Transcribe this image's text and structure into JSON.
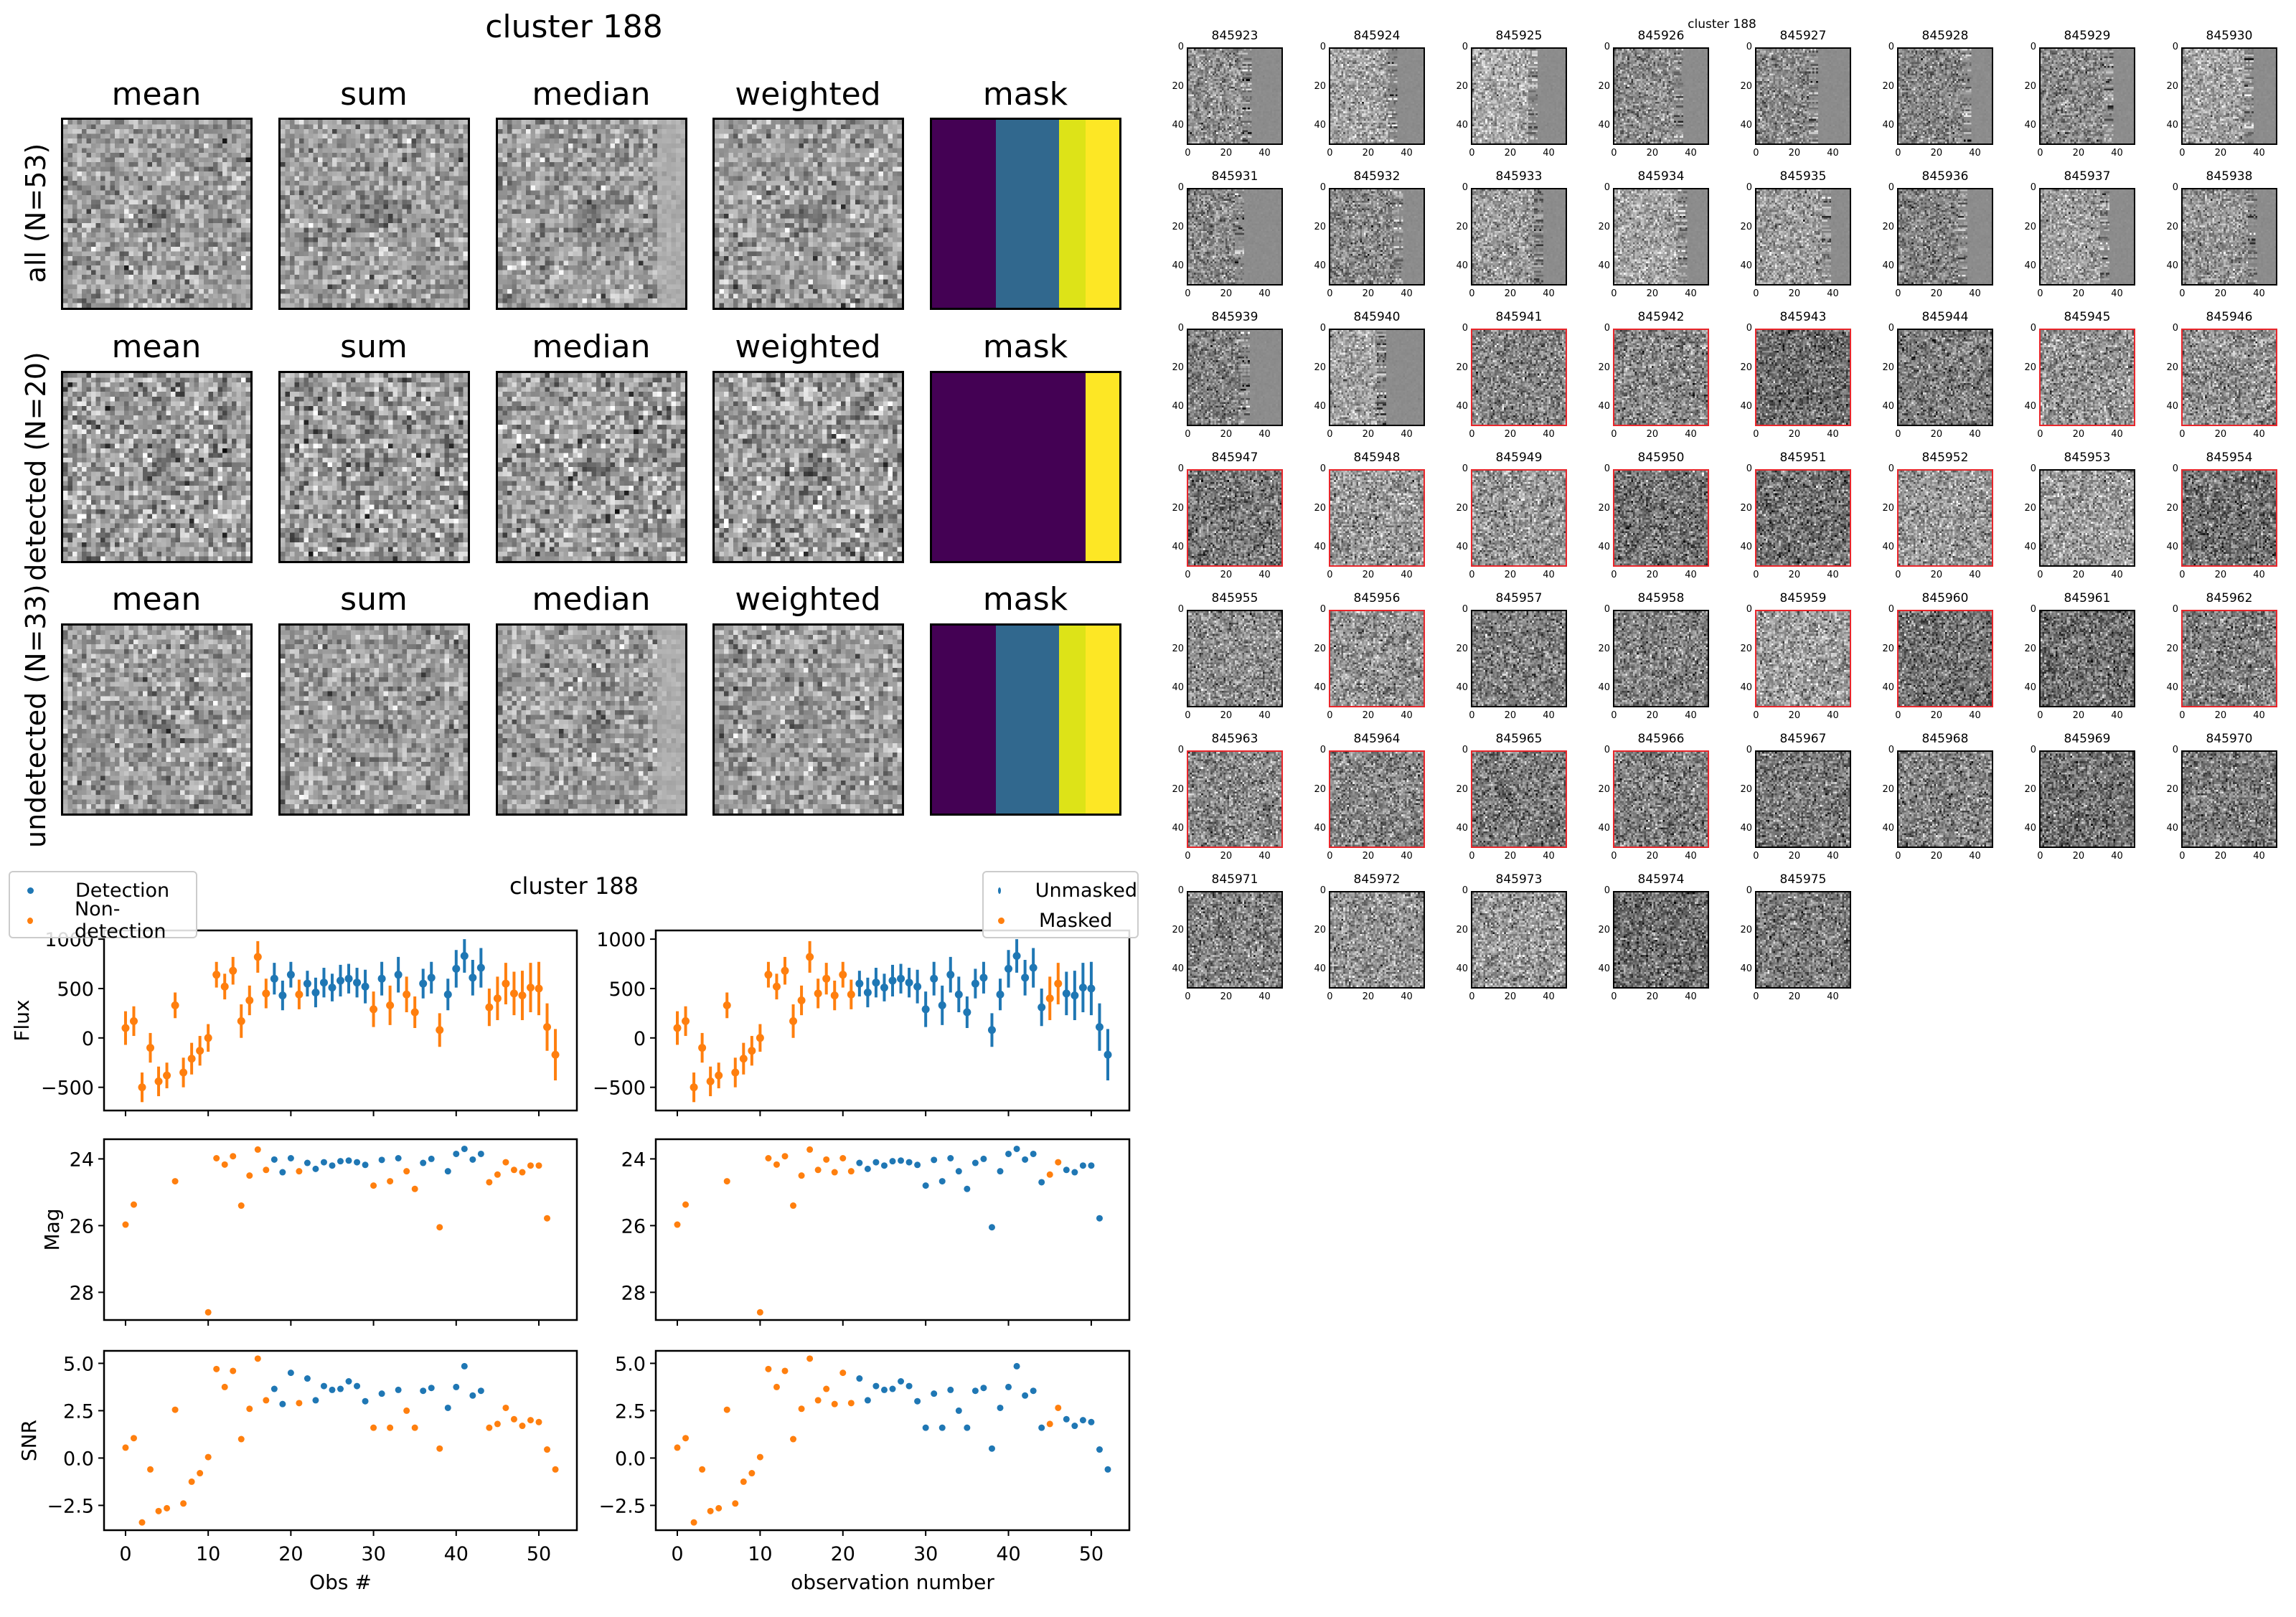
{
  "left_figure": {
    "title": "cluster 188",
    "column_titles": [
      "mean",
      "sum",
      "median",
      "weighted",
      "mask"
    ],
    "row_labels": [
      "all (N=53)",
      "detected (N=20)",
      "undetected (N=33)"
    ],
    "mask_colors": {
      "purple": "#440154",
      "blue": "#31688e",
      "green_yellow": "#dde318",
      "yellow": "#fde725"
    }
  },
  "thumbnail_grid": {
    "title": "cluster 188",
    "ids": [
      "845923",
      "845924",
      "845925",
      "845926",
      "845927",
      "845928",
      "845929",
      "845930",
      "845931",
      "845932",
      "845933",
      "845934",
      "845935",
      "845936",
      "845937",
      "845938",
      "845939",
      "845940",
      "845941",
      "845942",
      "845943",
      "845944",
      "845945",
      "845946",
      "845947",
      "845948",
      "845949",
      "845950",
      "845951",
      "845952",
      "845953",
      "845954",
      "845955",
      "845956",
      "845957",
      "845958",
      "845959",
      "845960",
      "845961",
      "845962",
      "845963",
      "845964",
      "845965",
      "845966",
      "845967",
      "845968",
      "845969",
      "845970",
      "845971",
      "845972",
      "845973",
      "845974",
      "845975"
    ],
    "highlighted_ids": [
      "845941",
      "845942",
      "845943",
      "845945",
      "845946",
      "845947",
      "845948",
      "845949",
      "845950",
      "845951",
      "845952",
      "845954",
      "845956",
      "845959",
      "845960",
      "845962",
      "845963",
      "845964",
      "845965",
      "845966"
    ],
    "highlight_color": "#e8262b",
    "tick_labels": [
      "0",
      "20",
      "40"
    ]
  },
  "chart_data": {
    "type": "scatter",
    "title": "cluster 188",
    "colors": {
      "blue": "#1f77b4",
      "orange": "#ff7f0e"
    },
    "xlim": [
      -2.6,
      54.6
    ],
    "xticks": [
      0,
      10,
      20,
      30,
      40,
      50
    ],
    "charts": [
      {
        "xlabel": "Obs #",
        "color_by": "detected",
        "legend": [
          "Detection",
          "Non-detection"
        ],
        "legend_loc": "upper-left"
      },
      {
        "xlabel": "observation number",
        "color_by": "unmasked",
        "legend": [
          "Unmasked",
          "Masked"
        ],
        "legend_loc": "upper-right"
      }
    ],
    "panels": [
      {
        "ylabel": "Flux",
        "key": "flux",
        "ylim": [
          -735,
          1088
        ],
        "yticks": [
          -500,
          0,
          500,
          1000
        ],
        "tick_labels": [
          "−500",
          "0",
          "500",
          "1000"
        ],
        "inverted": false
      },
      {
        "ylabel": "Mag",
        "key": "mag",
        "ylim": [
          28.83,
          23.41
        ],
        "yticks": [
          24,
          26,
          28
        ],
        "tick_labels": [
          "24",
          "26",
          "28"
        ],
        "inverted": true
      },
      {
        "ylabel": "SNR",
        "key": "snr",
        "ylim": [
          -3.81,
          5.66
        ],
        "yticks": [
          -2.5,
          0,
          2.5,
          5
        ],
        "tick_labels": [
          "−2.5",
          "0.0",
          "2.5",
          "5.0"
        ],
        "inverted": false
      }
    ],
    "x_tick_labels": [
      "0",
      "10",
      "20",
      "30",
      "40",
      "50"
    ],
    "observations": {
      "obs": [
        0,
        1,
        2,
        3,
        4,
        5,
        6,
        7,
        8,
        9,
        10,
        11,
        12,
        13,
        14,
        15,
        16,
        17,
        18,
        19,
        20,
        21,
        22,
        23,
        24,
        25,
        26,
        27,
        28,
        29,
        30,
        31,
        32,
        33,
        34,
        35,
        36,
        37,
        38,
        39,
        40,
        41,
        42,
        43,
        44,
        45,
        46,
        47,
        48,
        49,
        50,
        51,
        52
      ],
      "flux": [
        100,
        170,
        -500,
        -100,
        -440,
        -380,
        330,
        -350,
        -210,
        -130,
        0,
        640,
        520,
        680,
        170,
        380,
        820,
        450,
        600,
        430,
        640,
        440,
        550,
        460,
        560,
        510,
        580,
        600,
        560,
        520,
        290,
        600,
        330,
        640,
        440,
        260,
        550,
        610,
        80,
        440,
        700,
        830,
        610,
        710,
        310,
        400,
        550,
        450,
        430,
        510,
        500,
        110,
        -170
      ],
      "flux_err": [
        170,
        150,
        150,
        150,
        150,
        130,
        130,
        150,
        160,
        150,
        140,
        130,
        130,
        140,
        170,
        150,
        160,
        150,
        160,
        150,
        130,
        150,
        130,
        150,
        150,
        140,
        160,
        150,
        150,
        170,
        180,
        170,
        200,
        180,
        180,
        160,
        150,
        160,
        170,
        160,
        190,
        170,
        180,
        200,
        190,
        220,
        210,
        220,
        250,
        250,
        270,
        240,
        260
      ],
      "mag": [
        25.97,
        25.37,
        null,
        null,
        null,
        null,
        24.67,
        null,
        null,
        null,
        28.6,
        23.98,
        24.17,
        23.92,
        25.4,
        24.5,
        23.72,
        24.33,
        24.02,
        24.4,
        23.98,
        24.37,
        24.12,
        24.3,
        24.1,
        24.2,
        24.07,
        24.05,
        24.1,
        24.18,
        24.8,
        24.03,
        24.67,
        23.98,
        24.37,
        24.9,
        24.12,
        24.0,
        26.05,
        24.37,
        23.85,
        23.7,
        24.02,
        23.85,
        24.7,
        24.47,
        24.1,
        24.33,
        24.4,
        24.2,
        24.2,
        25.78,
        null
      ],
      "snr": [
        0.55,
        1.05,
        -3.4,
        -0.6,
        -2.8,
        -2.65,
        2.55,
        -2.4,
        -1.25,
        -0.8,
        0.05,
        4.7,
        3.75,
        4.6,
        1.0,
        2.6,
        5.25,
        3.05,
        3.65,
        2.85,
        4.5,
        2.9,
        4.2,
        3.05,
        3.8,
        3.6,
        3.65,
        4.05,
        3.8,
        3.0,
        1.6,
        3.4,
        1.6,
        3.6,
        2.5,
        1.6,
        3.55,
        3.7,
        0.5,
        2.65,
        3.75,
        4.85,
        3.3,
        3.55,
        1.6,
        1.8,
        2.65,
        2.05,
        1.7,
        2.0,
        1.9,
        0.45,
        -0.6
      ],
      "detected": [
        0,
        0,
        0,
        0,
        0,
        0,
        0,
        0,
        0,
        0,
        0,
        0,
        0,
        0,
        0,
        0,
        0,
        0,
        1,
        1,
        1,
        0,
        1,
        1,
        1,
        1,
        1,
        1,
        1,
        1,
        0,
        1,
        0,
        1,
        0,
        0,
        1,
        1,
        0,
        1,
        1,
        1,
        1,
        1,
        0,
        0,
        0,
        0,
        0,
        0,
        0,
        0,
        0
      ],
      "unmasked": [
        0,
        0,
        0,
        0,
        0,
        0,
        0,
        0,
        0,
        0,
        0,
        0,
        0,
        0,
        0,
        0,
        0,
        0,
        0,
        0,
        0,
        0,
        1,
        1,
        1,
        1,
        1,
        1,
        1,
        1,
        1,
        1,
        1,
        1,
        1,
        1,
        1,
        1,
        1,
        1,
        1,
        1,
        1,
        1,
        1,
        0,
        0,
        1,
        1,
        1,
        1,
        1,
        1
      ]
    }
  }
}
